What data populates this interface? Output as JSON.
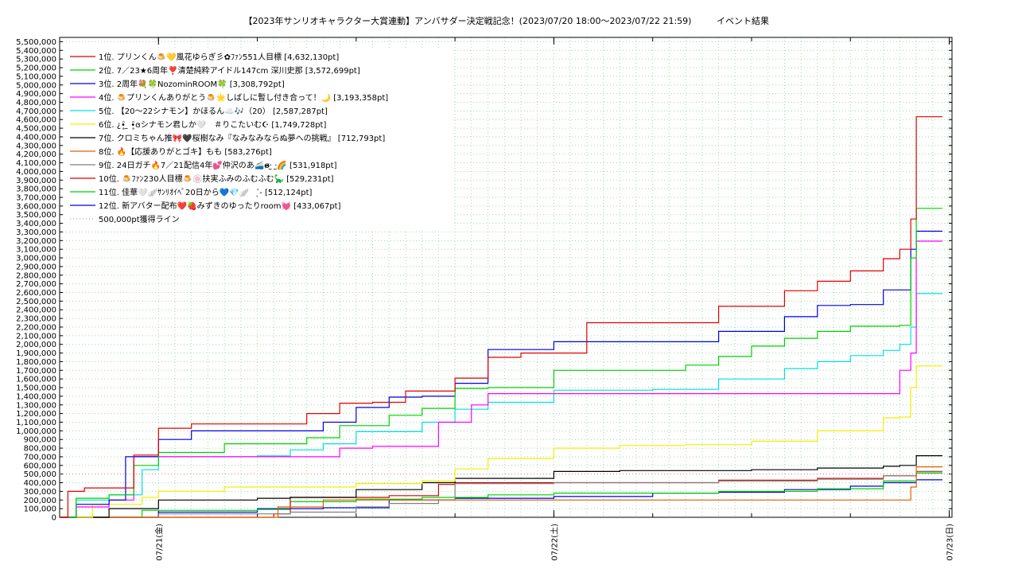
{
  "chart_data": {
    "type": "line",
    "title": "【2023年サンリオキャラクター大賞連動】アンバサダー決定戦記念！(2023/07/20 18:00～2023/07/22 21:59)",
    "subtitle": "イベント結果",
    "xlabel": "",
    "ylabel": "",
    "xlim": [
      "2023/07/20 18:00",
      "2023/07/23 00:10"
    ],
    "ylim": [
      0,
      5550000
    ],
    "y_tick_step": 100000,
    "x_ticks": [
      {
        "label": "07/21(金)",
        "t": "2023/07/21 00:00"
      },
      {
        "label": "07/22(土)",
        "t": "2023/07/22 00:00"
      },
      {
        "label": "07/23(日)",
        "t": "2023/07/23 00:00"
      }
    ],
    "grid": true,
    "legend_position": "top-left",
    "series": [
      {
        "name": "1位. プリンくん🍮💛風花ゆらぎ彡✿ﾌｧﾝ551人目標 [4,632,130pt]",
        "color": "#e00000",
        "x": [
          "2023/07/20 18:00",
          "2023/07/20 18:30",
          "2023/07/20 19:30",
          "2023/07/20 21:00",
          "2023/07/20 22:30",
          "2023/07/21 00:00",
          "2023/07/21 02:00",
          "2023/07/21 06:00",
          "2023/07/21 08:00",
          "2023/07/21 09:00",
          "2023/07/21 11:00",
          "2023/07/21 13:00",
          "2023/07/21 15:00",
          "2023/07/21 18:00",
          "2023/07/21 20:00",
          "2023/07/21 22:00",
          "2023/07/22 02:00",
          "2023/07/22 05:00",
          "2023/07/22 07:00",
          "2023/07/22 10:00",
          "2023/07/22 12:00",
          "2023/07/22 14:00",
          "2023/07/22 16:00",
          "2023/07/22 18:00",
          "2023/07/22 20:00",
          "2023/07/22 21:00",
          "2023/07/22 21:40",
          "2023/07/22 22:00"
        ],
        "y": [
          0,
          300000,
          340000,
          340000,
          720000,
          1030000,
          1080000,
          1080000,
          1080000,
          1200000,
          1320000,
          1330000,
          1460000,
          1610000,
          1850000,
          1900000,
          2250000,
          2250000,
          2250000,
          2440000,
          2440000,
          2620000,
          2730000,
          2850000,
          2990000,
          3100000,
          3450000,
          4632130
        ]
      },
      {
        "name": "2位. 7／23★6周年❣️清楚純粋アイドル147cm 深川史那 [3,572,699pt]",
        "color": "#00d000",
        "x": [
          "2023/07/20 18:00",
          "2023/07/20 19:00",
          "2023/07/20 21:00",
          "2023/07/20 22:30",
          "2023/07/21 00:00",
          "2023/07/21 04:00",
          "2023/07/21 06:00",
          "2023/07/21 09:00",
          "2023/07/21 11:00",
          "2023/07/21 14:00",
          "2023/07/21 16:00",
          "2023/07/21 18:00",
          "2023/07/21 20:00",
          "2023/07/22 00:00",
          "2023/07/22 03:00",
          "2023/07/22 06:00",
          "2023/07/22 08:00",
          "2023/07/22 10:00",
          "2023/07/22 12:00",
          "2023/07/22 14:00",
          "2023/07/22 16:00",
          "2023/07/22 18:00",
          "2023/07/22 20:00",
          "2023/07/22 21:00",
          "2023/07/22 21:40",
          "2023/07/22 22:00"
        ],
        "y": [
          0,
          220000,
          260000,
          600000,
          750000,
          850000,
          850000,
          920000,
          1060000,
          1180000,
          1260000,
          1490000,
          1500000,
          1700000,
          1700000,
          1700000,
          1760000,
          1860000,
          1980000,
          2070000,
          2150000,
          2210000,
          2210000,
          2220000,
          3000000,
          3572699
        ]
      },
      {
        "name": "3位. 2周年💐🍀NozominROOM🍀 [3,308,792pt]",
        "color": "#0000e0",
        "x": [
          "2023/07/20 18:00",
          "2023/07/20 19:00",
          "2023/07/20 21:00",
          "2023/07/20 22:00",
          "2023/07/21 00:00",
          "2023/07/21 02:00",
          "2023/07/21 08:00",
          "2023/07/21 10:00",
          "2023/07/21 12:00",
          "2023/07/21 14:00",
          "2023/07/21 16:00",
          "2023/07/21 18:00",
          "2023/07/21 20:00",
          "2023/07/22 00:00",
          "2023/07/22 04:00",
          "2023/07/22 08:00",
          "2023/07/22 10:00",
          "2023/07/22 12:00",
          "2023/07/22 14:00",
          "2023/07/22 16:00",
          "2023/07/22 18:00",
          "2023/07/22 20:00",
          "2023/07/22 21:00",
          "2023/07/22 21:40",
          "2023/07/22 22:00"
        ],
        "y": [
          0,
          150000,
          200000,
          700000,
          900000,
          1000000,
          1000000,
          1100000,
          1270000,
          1390000,
          1400000,
          1550000,
          1940000,
          2030000,
          2030000,
          2030000,
          2150000,
          2150000,
          2320000,
          2450000,
          2460000,
          2630000,
          2630000,
          3100000,
          3308792
        ]
      },
      {
        "name": "4位. 🍮プリンくんありがとう🍮🌟しばしに暫し付き合って！🌙 [3,193,358pt]",
        "color": "#ff00ff",
        "x": [
          "2023/07/20 18:00",
          "2023/07/20 19:00",
          "2023/07/20 21:00",
          "2023/07/20 22:30",
          "2023/07/21 00:00",
          "2023/07/21 06:00",
          "2023/07/21 09:00",
          "2023/07/21 11:00",
          "2023/07/21 13:00",
          "2023/07/21 15:00",
          "2023/07/21 17:00",
          "2023/07/21 19:00",
          "2023/07/21 20:00",
          "2023/07/22 00:00",
          "2023/07/22 08:00",
          "2023/07/22 16:00",
          "2023/07/22 20:00",
          "2023/07/22 21:00",
          "2023/07/22 21:40",
          "2023/07/22 22:00"
        ],
        "y": [
          0,
          120000,
          200000,
          700000,
          700000,
          700000,
          700000,
          800000,
          820000,
          820000,
          1100000,
          1300000,
          1430000,
          1430000,
          1430000,
          1430000,
          1430000,
          1700000,
          1900000,
          3193358
        ]
      },
      {
        "name": "5位. 【20〜22シナモン】かほるん☁️🎶（20） [2,587,287pt]",
        "color": "#00e0e0",
        "x": [
          "2023/07/20 18:00",
          "2023/07/20 19:00",
          "2023/07/20 21:00",
          "2023/07/20 23:00",
          "2023/07/21 00:00",
          "2023/07/21 06:00",
          "2023/07/21 08:00",
          "2023/07/21 10:00",
          "2023/07/21 12:00",
          "2023/07/21 14:00",
          "2023/07/21 16:00",
          "2023/07/21 18:00",
          "2023/07/21 20:00",
          "2023/07/22 00:00",
          "2023/07/22 06:00",
          "2023/07/22 10:00",
          "2023/07/22 12:00",
          "2023/07/22 14:00",
          "2023/07/22 16:00",
          "2023/07/22 18:00",
          "2023/07/22 20:00",
          "2023/07/22 21:00",
          "2023/07/22 21:40",
          "2023/07/22 22:00"
        ],
        "y": [
          0,
          200000,
          260000,
          550000,
          700000,
          710000,
          780000,
          850000,
          990000,
          990000,
          1100000,
          1250000,
          1330000,
          1470000,
          1480000,
          1600000,
          1600000,
          1720000,
          1800000,
          1870000,
          1930000,
          2000000,
          2200000,
          2587287
        ]
      },
      {
        "name": "6位. ¿•̥̑ ̫ •̥̑ɞシナモン君しか🤍　＃りこたいむ☪ [1,749,728pt]",
        "color": "#f0f000",
        "x": [
          "2023/07/20 18:00",
          "2023/07/20 20:00",
          "2023/07/20 23:00",
          "2023/07/21 00:00",
          "2023/07/21 04:00",
          "2023/07/21 08:00",
          "2023/07/21 12:00",
          "2023/07/21 16:00",
          "2023/07/21 18:00",
          "2023/07/21 20:00",
          "2023/07/22 00:00",
          "2023/07/22 04:00",
          "2023/07/22 08:00",
          "2023/07/22 12:00",
          "2023/07/22 16:00",
          "2023/07/22 20:00",
          "2023/07/22 21:00",
          "2023/07/22 21:40",
          "2023/07/22 22:00"
        ],
        "y": [
          0,
          150000,
          230000,
          300000,
          350000,
          350000,
          390000,
          420000,
          560000,
          680000,
          800000,
          830000,
          840000,
          880000,
          1000000,
          1150000,
          1160000,
          1500000,
          1749728
        ]
      },
      {
        "name": "7位. クロミちゃん推🎀🖤桜樹なみ『なみなみならぬ夢への挑戦』 [712,793pt]",
        "color": "#000000",
        "x": [
          "2023/07/20 18:00",
          "2023/07/20 21:00",
          "2023/07/21 00:00",
          "2023/07/21 06:00",
          "2023/07/21 08:00",
          "2023/07/21 12:00",
          "2023/07/21 16:00",
          "2023/07/21 18:00",
          "2023/07/22 00:00",
          "2023/07/22 04:00",
          "2023/07/22 12:00",
          "2023/07/22 16:00",
          "2023/07/22 20:00",
          "2023/07/22 21:00",
          "2023/07/22 22:00"
        ],
        "y": [
          0,
          100000,
          200000,
          220000,
          230000,
          320000,
          400000,
          450000,
          530000,
          540000,
          550000,
          570000,
          590000,
          600000,
          712793
        ]
      },
      {
        "name": "8位. 🔥【応援ありがとゴキ】もも [583,276pt]",
        "color": "#e06000",
        "x": [
          "2023/07/20 18:00",
          "2023/07/21 07:00",
          "2023/07/21 07:15",
          "2023/07/21 10:00",
          "2023/07/21 13:00",
          "2023/07/21 16:00",
          "2023/07/21 17:00",
          "2023/07/21 20:00",
          "2023/07/22 08:00",
          "2023/07/22 21:00",
          "2023/07/22 21:40",
          "2023/07/22 22:00"
        ],
        "y": [
          0,
          0,
          120000,
          200000,
          200000,
          200000,
          200000,
          200000,
          200000,
          200000,
          350000,
          583276
        ]
      },
      {
        "name": "9位. 24日ガチ🔥7／21配信4年💕仲沢のあ🚄ɞ̴̶̷·̫ ·̫🌈 [531,918pt]",
        "color": "#808080",
        "x": [
          "2023/07/20 18:00",
          "2023/07/21 00:00",
          "2023/07/21 08:00",
          "2023/07/21 12:00",
          "2023/07/21 14:00",
          "2023/07/21 16:00",
          "2023/07/21 17:00",
          "2023/07/21 18:00",
          "2023/07/22 00:00",
          "2023/07/22 06:00",
          "2023/07/22 10:00",
          "2023/07/22 16:00",
          "2023/07/22 20:00",
          "2023/07/22 22:00"
        ],
        "y": [
          0,
          40000,
          60000,
          120000,
          160000,
          160000,
          200000,
          390000,
          400000,
          400000,
          420000,
          440000,
          480000,
          531918
        ]
      },
      {
        "name": "10位. 🍮ﾌｧﾝ230人目標🍮🍥扶実ふみのふむふむ🦕 [529,231pt]",
        "color": "#e00000",
        "x": [
          "2023/07/20 18:00",
          "2023/07/21 07:00",
          "2023/07/21 08:00",
          "2023/07/21 10:00",
          "2023/07/21 14:00",
          "2023/07/21 17:00",
          "2023/07/21 18:00",
          "2023/07/22 00:00",
          "2023/07/22 06:00",
          "2023/07/22 10:00",
          "2023/07/22 16:00",
          "2023/07/22 20:00",
          "2023/07/22 22:00"
        ],
        "y": [
          0,
          40000,
          230000,
          230000,
          250000,
          380000,
          400000,
          400000,
          400000,
          430000,
          450000,
          480000,
          529231
        ]
      },
      {
        "name": "11位. 佳華🤍🪽ｻﾝﾘｵｲﾍﾞ20日から💙💎🪽　 ̖́- [512,124pt]",
        "color": "#00d000",
        "x": [
          "2023/07/20 18:00",
          "2023/07/20 23:00",
          "2023/07/21 06:00",
          "2023/07/21 08:00",
          "2023/07/21 12:00",
          "2023/07/21 16:00",
          "2023/07/21 20:00",
          "2023/07/22 00:00",
          "2023/07/22 10:00",
          "2023/07/22 16:00",
          "2023/07/22 20:00",
          "2023/07/22 22:00"
        ],
        "y": [
          0,
          80000,
          90000,
          180000,
          210000,
          230000,
          260000,
          280000,
          300000,
          330000,
          420000,
          512124
        ]
      },
      {
        "name": "12位. 新アバター配布❤️🍓みずきのゆったりroom💓 [433,067pt]",
        "color": "#0000e0",
        "x": [
          "2023/07/20 18:00",
          "2023/07/21 00:00",
          "2023/07/21 06:00",
          "2023/07/21 10:00",
          "2023/07/21 14:00",
          "2023/07/21 18:00",
          "2023/07/22 00:00",
          "2023/07/22 06:00",
          "2023/07/22 10:00",
          "2023/07/22 14:00",
          "2023/07/22 18:00",
          "2023/07/22 20:00",
          "2023/07/22 22:00"
        ],
        "y": [
          0,
          60000,
          100000,
          110000,
          200000,
          220000,
          240000,
          280000,
          290000,
          320000,
          360000,
          400000,
          433067
        ]
      }
    ],
    "threshold_line": {
      "name": "500,000pt獲得ライン",
      "value": 500000,
      "color": "#e09090"
    }
  }
}
